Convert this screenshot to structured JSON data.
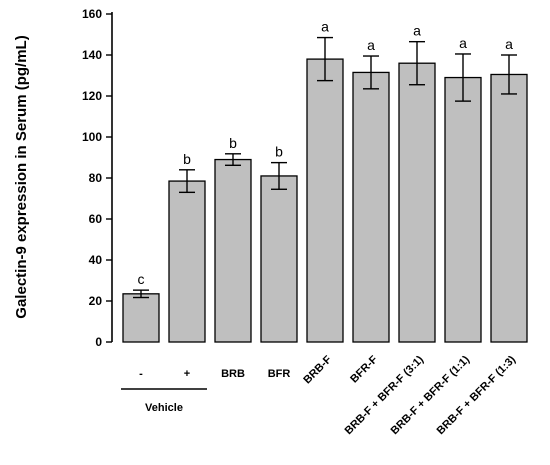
{
  "chart_data": {
    "type": "bar",
    "ylabel": "Galectin-9 expression in Serum (pg/mL)",
    "xlabel": "",
    "ylim": [
      0,
      160
    ],
    "yticks": [
      0,
      20,
      40,
      60,
      80,
      100,
      120,
      140,
      160
    ],
    "grid": false,
    "categories": [
      "-",
      "+",
      "BRB",
      "BFR",
      "BRB-F",
      "BFR-F",
      "BRB-F + BFR-F (3:1)",
      "BRB-F + BFR-F (1:1)",
      "BRB-F + BFR-F (1:3)"
    ],
    "values": [
      23.5,
      78.5,
      89,
      81,
      138,
      131.5,
      136,
      129,
      130.5
    ],
    "errors": [
      1.8,
      5.5,
      2.8,
      6.5,
      10.5,
      8,
      10.5,
      11.5,
      9.5
    ],
    "significance": [
      "c",
      "b",
      "b",
      "b",
      "a",
      "a",
      "a",
      "a",
      "a"
    ],
    "group_label": "Vehicle",
    "group_members": [
      0,
      1
    ],
    "rotated_labels_from": 4
  }
}
